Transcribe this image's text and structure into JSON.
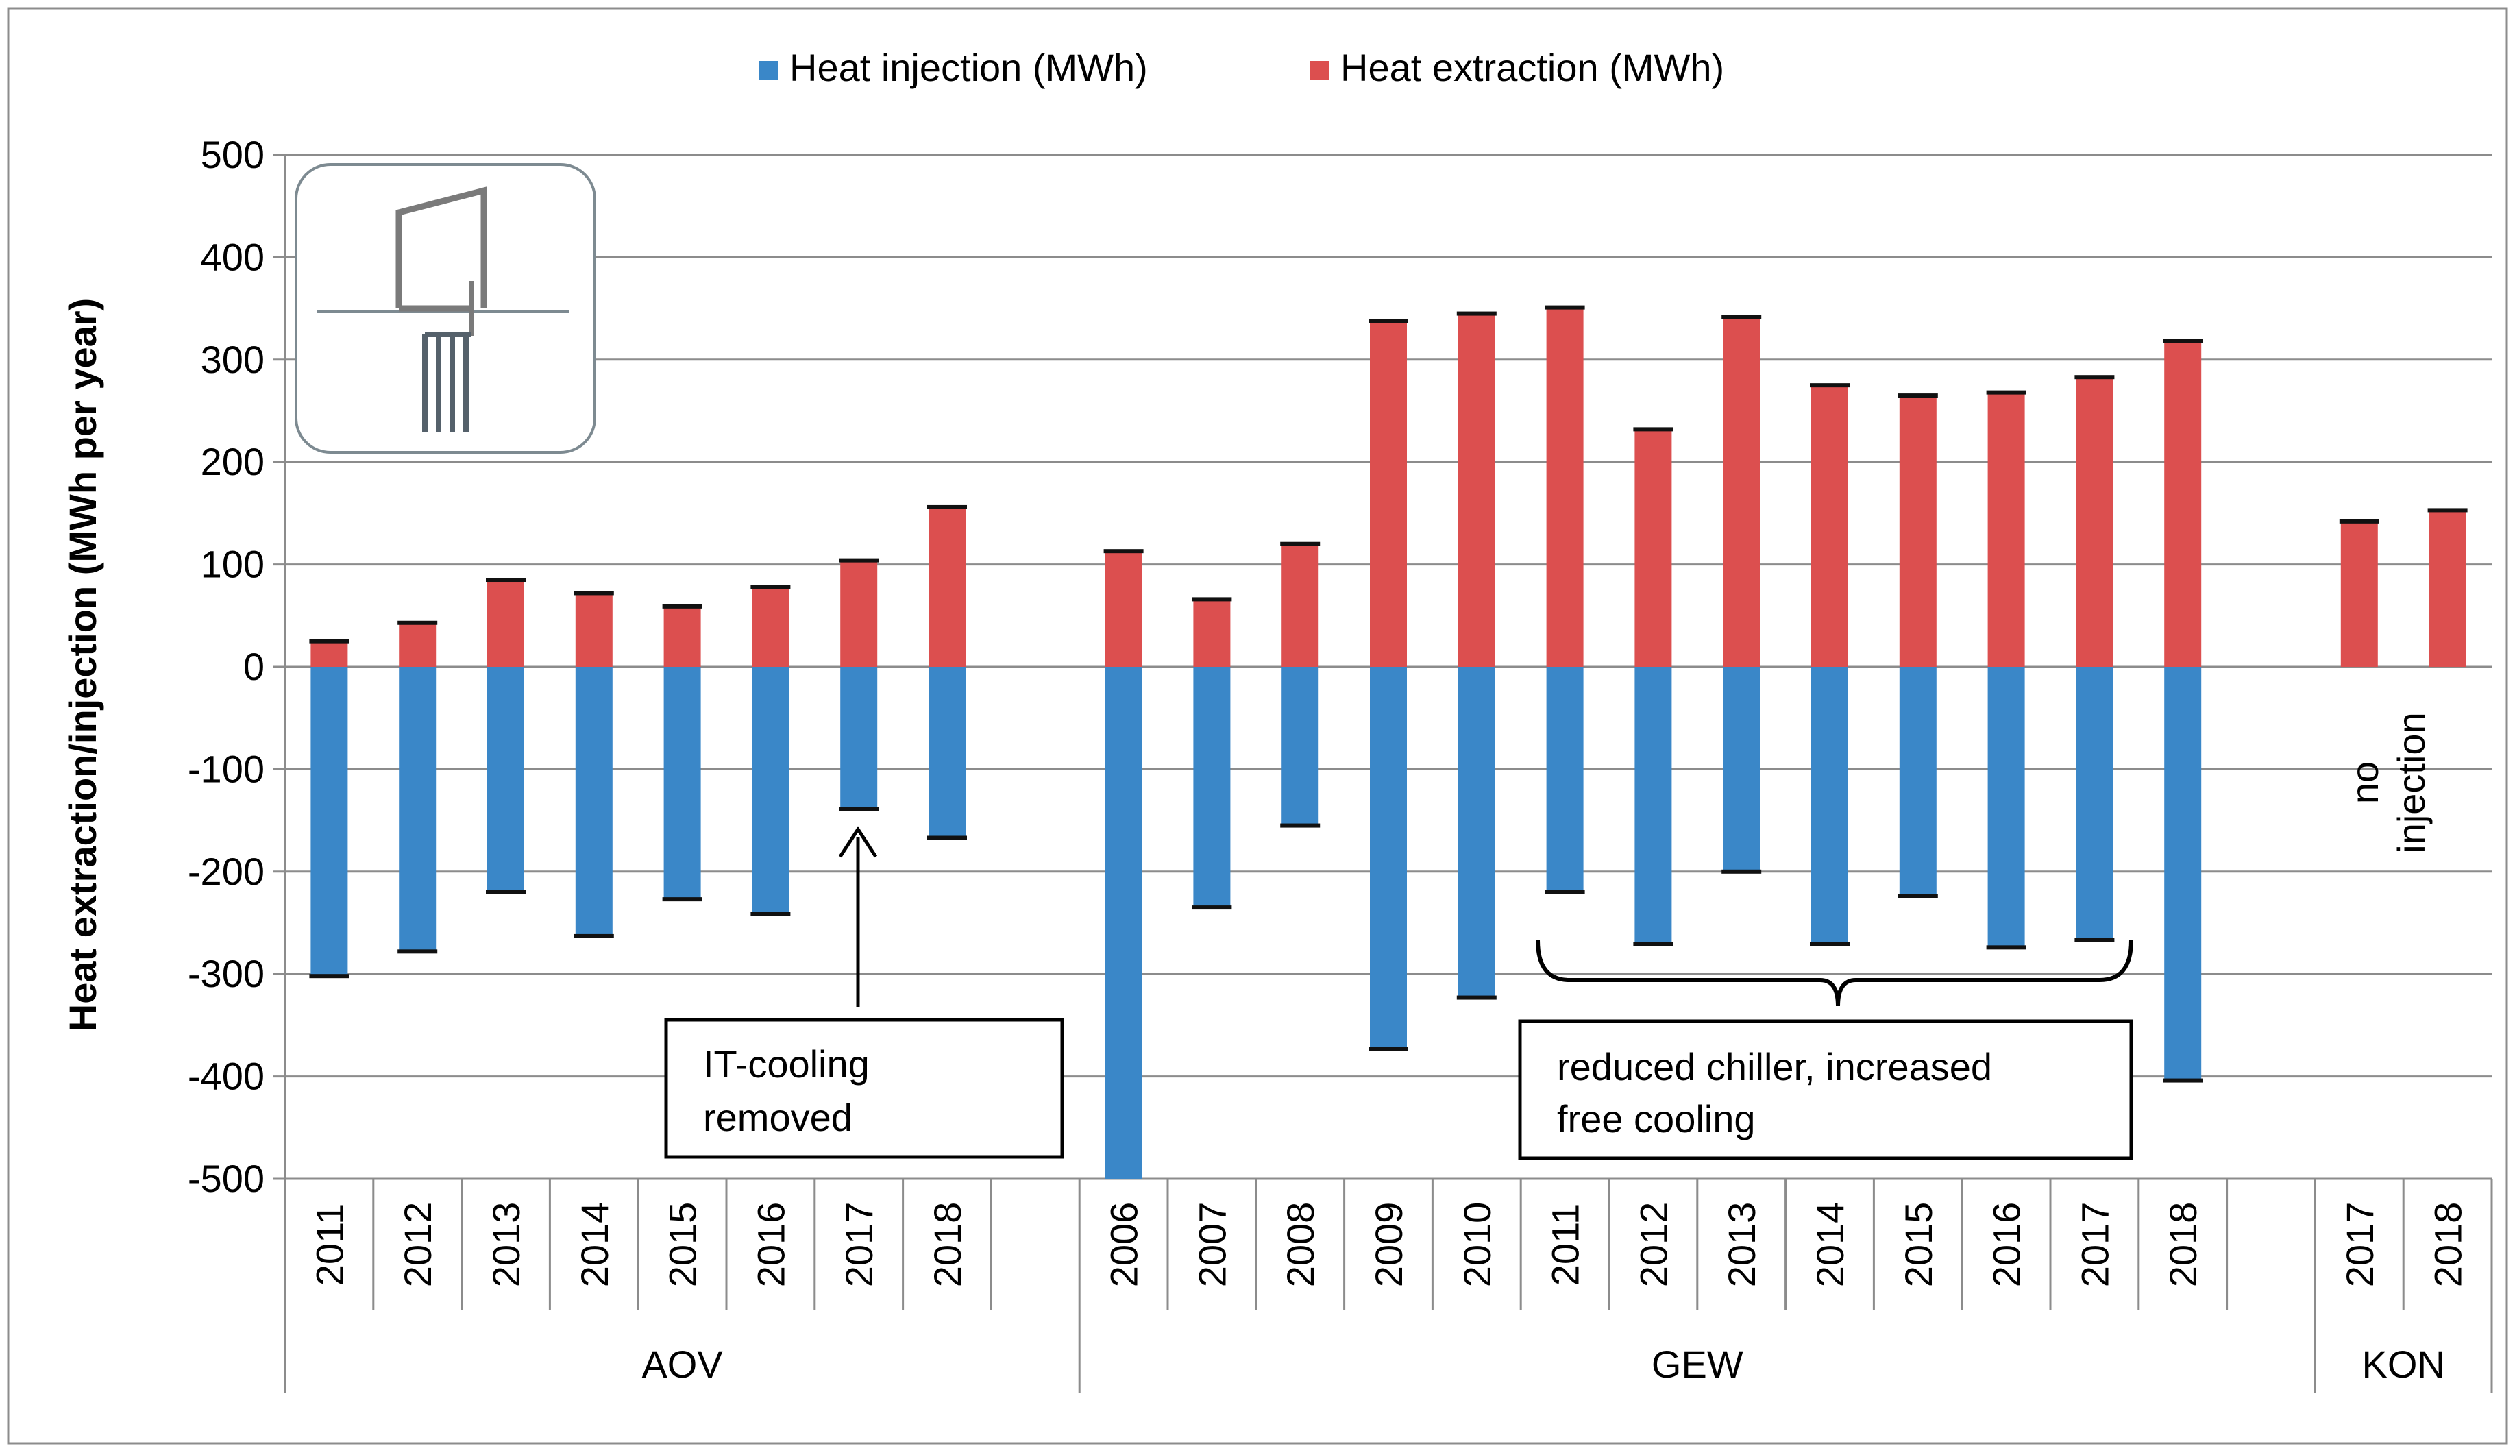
{
  "chart_data": {
    "type": "bar",
    "stacked": "diverging",
    "ylabel": "Heat extraction/injection (MWh per year)",
    "ylim": [
      -500,
      500
    ],
    "yticks": [
      500,
      400,
      300,
      200,
      100,
      0,
      -100,
      -200,
      -300,
      -400,
      -500
    ],
    "grid": true,
    "legend_position": "top-center",
    "series": [
      {
        "name": "Heat injection (MWh)",
        "color": "#3a87c8",
        "values": [
          -302,
          -278,
          -220,
          -263,
          -227,
          -241,
          -139,
          -167,
          null,
          -500,
          -235,
          -155,
          -373,
          -323,
          -220,
          -271,
          -200,
          -271,
          -224,
          -274,
          -267,
          -404,
          null,
          0,
          0
        ]
      },
      {
        "name": "Heat extraction (MWh)",
        "color": "#dc4f4f",
        "values": [
          25,
          43,
          85,
          72,
          59,
          78,
          104,
          156,
          null,
          113,
          66,
          120,
          338,
          345,
          351,
          232,
          342,
          275,
          265,
          268,
          283,
          318,
          null,
          142,
          153
        ]
      }
    ],
    "categories": [
      "2011",
      "2012",
      "2013",
      "2014",
      "2015",
      "2016",
      "2017",
      "2018",
      "",
      "2006",
      "2007",
      "2008",
      "2009",
      "2010",
      "2011",
      "2012",
      "2013",
      "2014",
      "2015",
      "2016",
      "2017",
      "2018",
      "",
      "2017",
      "2018"
    ],
    "groups": [
      {
        "name": "AOV",
        "start": 0,
        "end": 8
      },
      {
        "name": "GEW",
        "start": 9,
        "end": 22
      },
      {
        "name": "KON",
        "start": 23,
        "end": 24
      }
    ],
    "annotations": {
      "it_cooling": "IT-cooling removed",
      "it_cooling_line1": "IT-cooling",
      "it_cooling_line2": "removed",
      "reduced_line1": "reduced chiller, increased",
      "reduced_line2": "free cooling",
      "no_injection_line1": "no",
      "no_injection_line2": "injection"
    }
  }
}
